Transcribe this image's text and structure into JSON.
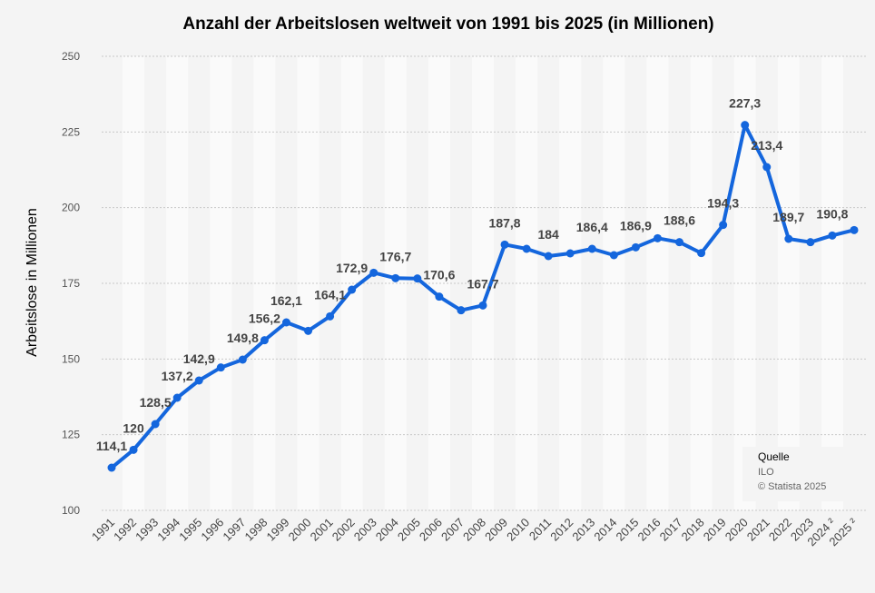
{
  "chart_data": {
    "type": "line",
    "title": "Anzahl der Arbeitslosen weltweit von 1991 bis 2025 (in Millionen)",
    "xlabel": "",
    "ylabel": "Arbeitslose in Millionen",
    "ylim": [
      100,
      250
    ],
    "yticks": [
      "250",
      "225",
      "200",
      "175",
      "150",
      "125",
      "100"
    ],
    "grid": true,
    "categories": [
      "1991",
      "1992",
      "1993",
      "1994",
      "1995",
      "1996",
      "1997",
      "1998",
      "1999",
      "2000",
      "2001",
      "2002",
      "2003",
      "2004",
      "2005",
      "2006",
      "2007",
      "2008",
      "2009",
      "2010",
      "2011",
      "2012",
      "2013",
      "2014",
      "2015",
      "2016",
      "2017",
      "2018",
      "2019",
      "2020",
      "2021",
      "2022",
      "2023",
      "2024 ²",
      "2025 ²"
    ],
    "series": [
      {
        "values": [
          114.1,
          120,
          128.5,
          137.2,
          142.9,
          147.2,
          149.8,
          156.2,
          162.1,
          159.3,
          164.1,
          172.9,
          178.5,
          176.7,
          176.6,
          170.6,
          166.1,
          167.7,
          187.8,
          186.4,
          184,
          184.9,
          186.4,
          184.3,
          186.9,
          189.9,
          188.6,
          185,
          194.3,
          227.3,
          213.4,
          189.7,
          188.6,
          190.8,
          192.6
        ],
        "labels": [
          "114,1",
          "120",
          "128,5",
          "137,2",
          "142,9",
          "",
          "149,8",
          "156,2",
          "162,1",
          "",
          "164,1",
          "172,9",
          "",
          "176,7",
          "",
          "170,6",
          "",
          "167,7",
          "187,8",
          "",
          "184",
          "",
          "186,4",
          "",
          "186,9",
          "",
          "188,6",
          "",
          "194,3",
          "227,3",
          "213,4",
          "189,7",
          "",
          "190,8",
          ""
        ]
      }
    ]
  },
  "source": {
    "heading": "Quelle",
    "name": "ILO",
    "copyright": "© Statista 2025"
  },
  "colors": {
    "line": "#1466dd",
    "background": "#f4f4f4",
    "band": "#fafafa",
    "grid": "#c8c8c8"
  }
}
